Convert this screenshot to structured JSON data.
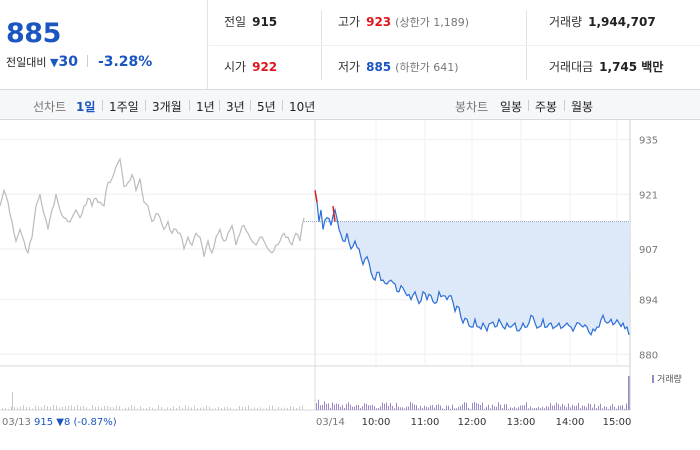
{
  "summary": {
    "price": "885",
    "change_label": "전일대비",
    "change_direction_icon": "triangle-down-icon",
    "change_symbol": "▼",
    "change_amount": "30",
    "change_rate": "-3.28%",
    "prev_close_label": "전일",
    "prev_close": "915",
    "open_label": "시가",
    "open": "922",
    "high_label": "고가",
    "high": "923",
    "upper_limit": "(상한가 1,189)",
    "low_label": "저가",
    "low": "885",
    "lower_limit": "(하한가 641)",
    "volume_label": "거래량",
    "volume": "1,944,707",
    "value_label": "거래대금",
    "value": "1,745 백만",
    "colors": {
      "up": "#e0161f",
      "down": "#1a55c0"
    }
  },
  "period_bar": {
    "line_chart_label": "선차트",
    "line_periods": [
      "1일",
      "1주일",
      "3개월",
      "1년",
      "3년",
      "5년",
      "10년"
    ],
    "active_period": "1일",
    "candle_chart_label": "봉차트",
    "candle_periods": [
      "일봉",
      "주봉",
      "월봉"
    ]
  },
  "chart_data": {
    "type": "line",
    "y_ticks": [
      935,
      921,
      907,
      894,
      880
    ],
    "ylim": [
      877,
      939
    ],
    "prev_day": {
      "date_label": "03/13",
      "summary_label": "915 ▼8 (-0.87%)",
      "close": 915,
      "color": "#bbbbbb",
      "anchors": [
        [
          0,
          918
        ],
        [
          4,
          922
        ],
        [
          8,
          919
        ],
        [
          12,
          914
        ],
        [
          16,
          909
        ],
        [
          20,
          912
        ],
        [
          24,
          909
        ],
        [
          28,
          906
        ],
        [
          32,
          910
        ],
        [
          36,
          918
        ],
        [
          40,
          921
        ],
        [
          44,
          916
        ],
        [
          48,
          912
        ],
        [
          52,
          917
        ],
        [
          56,
          921
        ],
        [
          60,
          917
        ],
        [
          64,
          915
        ],
        [
          68,
          914
        ],
        [
          72,
          915
        ],
        [
          76,
          917
        ],
        [
          80,
          915
        ],
        [
          84,
          918
        ],
        [
          88,
          920
        ],
        [
          92,
          918
        ],
        [
          96,
          920
        ],
        [
          100,
          919
        ],
        [
          104,
          918
        ],
        [
          108,
          924
        ],
        [
          112,
          925
        ],
        [
          116,
          928
        ],
        [
          120,
          930
        ],
        [
          124,
          923
        ],
        [
          128,
          924
        ],
        [
          132,
          926
        ],
        [
          136,
          922
        ],
        [
          140,
          925
        ],
        [
          144,
          919
        ],
        [
          148,
          918
        ],
        [
          152,
          914
        ],
        [
          156,
          916
        ],
        [
          160,
          915
        ],
        [
          164,
          912
        ],
        [
          168,
          914
        ],
        [
          172,
          911
        ],
        [
          176,
          912
        ],
        [
          180,
          911
        ],
        [
          184,
          907
        ],
        [
          188,
          910
        ],
        [
          192,
          908
        ],
        [
          196,
          911
        ],
        [
          200,
          910
        ],
        [
          204,
          905
        ],
        [
          208,
          909
        ],
        [
          212,
          906
        ],
        [
          216,
          910
        ],
        [
          220,
          912
        ],
        [
          224,
          909
        ],
        [
          228,
          911
        ],
        [
          232,
          913
        ],
        [
          236,
          908
        ],
        [
          240,
          911
        ],
        [
          244,
          913
        ],
        [
          248,
          911
        ],
        [
          252,
          909
        ],
        [
          256,
          908
        ],
        [
          260,
          910
        ],
        [
          264,
          909
        ],
        [
          268,
          907
        ],
        [
          272,
          906
        ],
        [
          276,
          908
        ],
        [
          280,
          909
        ],
        [
          284,
          911
        ],
        [
          288,
          910
        ],
        [
          292,
          908
        ],
        [
          296,
          911
        ],
        [
          300,
          909
        ],
        [
          304,
          915
        ]
      ]
    },
    "today": {
      "date_label": "03/14",
      "open": 922,
      "color": "#2c6ed6",
      "up_color": "#e0161f",
      "fill_color": "#dde8f8",
      "start_anchors": [
        [
          315,
          922
        ],
        [
          317,
          919
        ],
        [
          319,
          914
        ],
        [
          321,
          917
        ],
        [
          323,
          912
        ]
      ],
      "red_segments": [
        [
          [
            315,
            922
          ],
          [
            317,
            919
          ]
        ],
        [
          [
            333,
            918
          ],
          [
            335,
            914
          ]
        ]
      ],
      "anchors": [
        [
          323,
          912
        ],
        [
          327,
          915
        ],
        [
          331,
          913
        ],
        [
          335,
          917
        ],
        [
          339,
          912
        ],
        [
          343,
          909
        ],
        [
          347,
          911
        ],
        [
          351,
          907
        ],
        [
          355,
          909
        ],
        [
          359,
          907
        ],
        [
          363,
          903
        ],
        [
          367,
          905
        ],
        [
          371,
          901
        ],
        [
          375,
          899
        ],
        [
          379,
          901
        ],
        [
          383,
          899
        ],
        [
          387,
          898
        ],
        [
          391,
          899
        ],
        [
          395,
          898
        ],
        [
          399,
          896
        ],
        [
          403,
          897
        ],
        [
          407,
          895
        ],
        [
          411,
          894
        ],
        [
          415,
          896
        ],
        [
          419,
          893
        ],
        [
          423,
          896
        ],
        [
          427,
          894
        ],
        [
          431,
          895
        ],
        [
          435,
          893
        ],
        [
          439,
          896
        ],
        [
          443,
          895
        ],
        [
          447,
          894
        ],
        [
          451,
          895
        ],
        [
          455,
          891
        ],
        [
          459,
          892
        ],
        [
          463,
          888
        ],
        [
          467,
          889
        ],
        [
          471,
          887
        ],
        [
          475,
          889
        ],
        [
          479,
          887
        ],
        [
          483,
          888
        ],
        [
          487,
          886
        ],
        [
          491,
          888
        ],
        [
          495,
          887
        ],
        [
          499,
          889
        ],
        [
          503,
          887
        ],
        [
          507,
          888
        ],
        [
          511,
          887
        ],
        [
          515,
          888
        ],
        [
          519,
          886
        ],
        [
          523,
          888
        ],
        [
          527,
          887
        ],
        [
          531,
          890
        ],
        [
          535,
          888
        ],
        [
          539,
          887
        ],
        [
          543,
          889
        ],
        [
          547,
          887
        ],
        [
          551,
          888
        ],
        [
          555,
          887
        ],
        [
          559,
          888
        ],
        [
          563,
          887
        ],
        [
          567,
          888
        ],
        [
          571,
          887
        ],
        [
          575,
          887
        ],
        [
          579,
          888
        ],
        [
          583,
          887
        ],
        [
          587,
          887
        ],
        [
          591,
          885
        ],
        [
          595,
          886
        ],
        [
          599,
          887
        ],
        [
          603,
          890
        ],
        [
          607,
          888
        ],
        [
          611,
          889
        ],
        [
          615,
          888
        ],
        [
          619,
          888
        ],
        [
          623,
          888
        ],
        [
          627,
          887
        ],
        [
          629,
          885
        ]
      ],
      "time_labels": [
        {
          "x": 376,
          "t": "10:00"
        },
        {
          "x": 425,
          "t": "11:00"
        },
        {
          "x": 472,
          "t": "12:00"
        },
        {
          "x": 521,
          "t": "13:00"
        },
        {
          "x": 570,
          "t": "14:00"
        },
        {
          "x": 617,
          "t": "15:00"
        }
      ]
    },
    "volume_legend": "거래량",
    "volume_color": "#9c88c8"
  }
}
